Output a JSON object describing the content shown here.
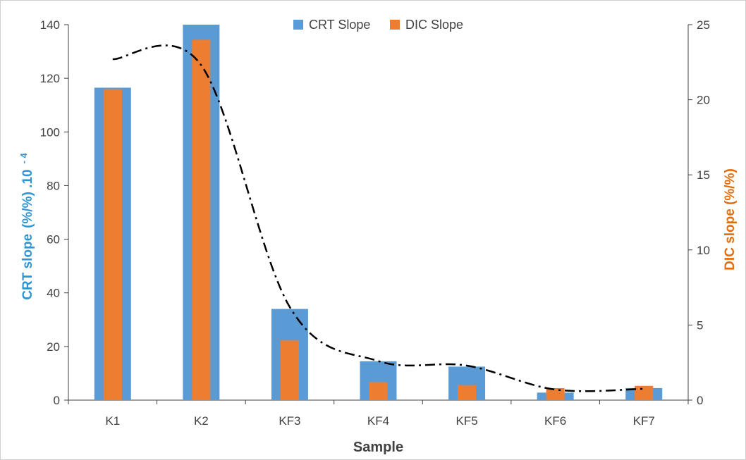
{
  "chart_data": {
    "type": "bar",
    "categories": [
      "K1",
      "K2",
      "KF3",
      "KF4",
      "KF5",
      "KF6",
      "KF7"
    ],
    "series": [
      {
        "name": "CRT Slope",
        "axis": "left",
        "values": [
          116.5,
          140,
          34,
          14.5,
          12.5,
          2.8,
          4.5
        ]
      },
      {
        "name": "DIC Slope",
        "axis": "right",
        "values": [
          20.7,
          24,
          4,
          1.2,
          1.0,
          0.8,
          0.95
        ]
      }
    ],
    "trendline": {
      "style": "dash-dot",
      "values": [
        22.7,
        22.3,
        6.2,
        2.6,
        2.3,
        0.7,
        0.75
      ]
    },
    "xlabel": "Sample",
    "ylabel_left": {
      "parts": [
        {
          "text": "CRT slope",
          "color": "#2e95d3"
        },
        {
          "text": "(%/%) .10",
          "color": "#2e95d3"
        },
        {
          "text": "- 4",
          "color": "#2e95d3",
          "superscript": true
        }
      ]
    },
    "ylabel_right": {
      "text": "DIC slope (%/%)",
      "color": "#e46c0a"
    },
    "ylim_left": [
      0,
      140
    ],
    "yticks_left": [
      "0",
      "20",
      "40",
      "60",
      "80",
      "100",
      "120",
      "140"
    ],
    "ylim_right": [
      0,
      25
    ],
    "yticks_right": [
      "0",
      "5",
      "10",
      "15",
      "20",
      "25"
    ],
    "grid": false,
    "legend_position": "top-center",
    "colors": {
      "crt": "#5b9bd5",
      "dic": "#ed7d31",
      "trend": "#000000",
      "axis": "#404040"
    }
  }
}
